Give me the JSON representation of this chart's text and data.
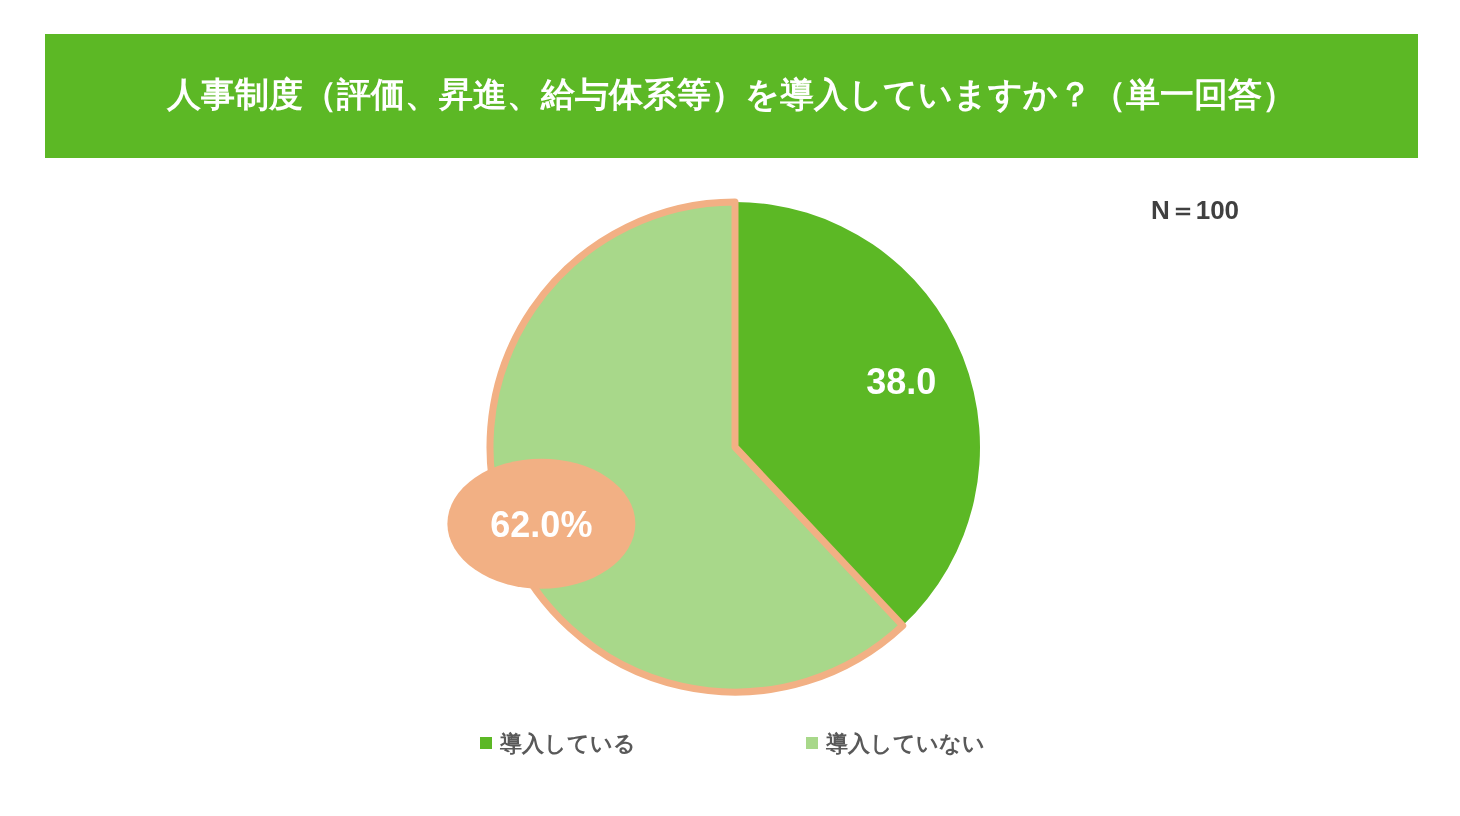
{
  "chart_data": {
    "type": "pie",
    "title": "人事制度（評価、昇進、給与体系等）を導入していますか？（単一回答）",
    "categories": [
      "導入している",
      "導入していない"
    ],
    "values": [
      38.0,
      62.0
    ],
    "colors": [
      "#5cb825",
      "#a8d88a"
    ],
    "value_labels": [
      "38.0",
      "62.0%"
    ],
    "legend": "bottom",
    "annotations": [
      "N＝100"
    ]
  }
}
